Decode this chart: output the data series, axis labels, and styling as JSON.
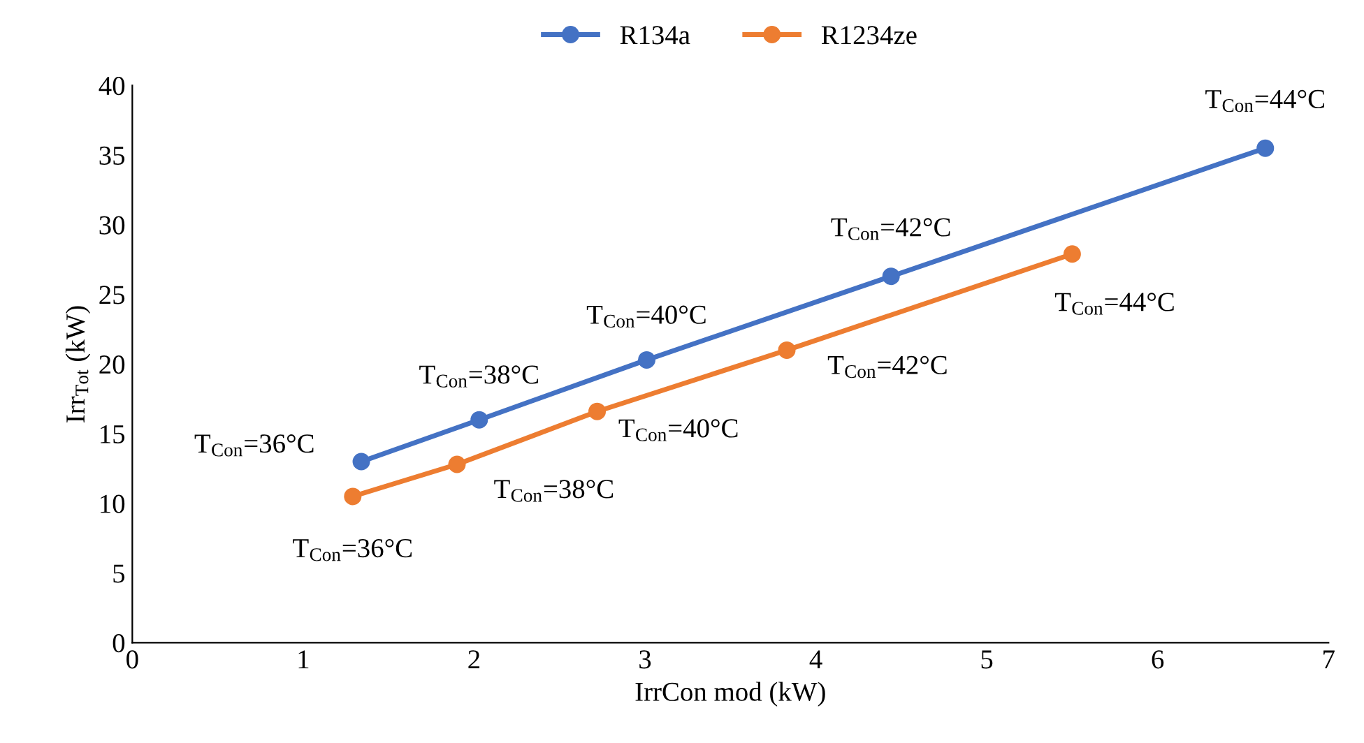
{
  "chart_data": {
    "type": "line",
    "xlabel": "IrrCon mod (kW)",
    "ylabel": "Irr$_{Tot}$ (kW)",
    "xlim": [
      0,
      7
    ],
    "xticks": [
      0,
      1,
      2,
      3,
      4,
      5,
      6,
      7
    ],
    "ylim": [
      0,
      40
    ],
    "yticks": [
      0,
      5,
      10,
      15,
      20,
      25,
      30,
      35,
      40
    ],
    "grid": false,
    "legend": "top",
    "marker": "circle",
    "line_style": "solid",
    "series": [
      {
        "name": "R134a",
        "color": "#4472c4",
        "x": [
          1.34,
          2.03,
          3.01,
          4.44,
          6.63
        ],
        "values": [
          13.0,
          16.0,
          20.3,
          26.3,
          35.5
        ]
      },
      {
        "name": "R1234ze",
        "color": "#ed7d31",
        "x": [
          1.29,
          1.9,
          2.72,
          3.83,
          5.5
        ],
        "values": [
          10.5,
          12.8,
          16.6,
          21.0,
          27.9
        ]
      }
    ],
    "annotations": [
      {
        "text": "T$_{Con}$=36°C",
        "x": 1.34,
        "y": 13.0
      },
      {
        "text": "T$_{Con}$=38°C",
        "x": 2.03,
        "y": 16.0
      },
      {
        "text": "T$_{Con}$=40°C",
        "x": 3.01,
        "y": 20.3
      },
      {
        "text": "T$_{Con}$=42°C",
        "x": 4.44,
        "y": 26.3
      },
      {
        "text": "T$_{Con}$=44°C",
        "x": 6.63,
        "y": 35.5
      },
      {
        "text": "T$_{Con}$=36°C",
        "x": 1.29,
        "y": 10.5
      },
      {
        "text": "T$_{Con}$=38°C",
        "x": 1.9,
        "y": 12.8
      },
      {
        "text": "T$_{Con}$=40°C",
        "x": 2.72,
        "y": 16.6
      },
      {
        "text": "T$_{Con}$=42°C",
        "x": 3.83,
        "y": 21.0
      },
      {
        "text": "T$_{Con}$=44°C",
        "x": 5.5,
        "y": 27.9
      }
    ]
  }
}
